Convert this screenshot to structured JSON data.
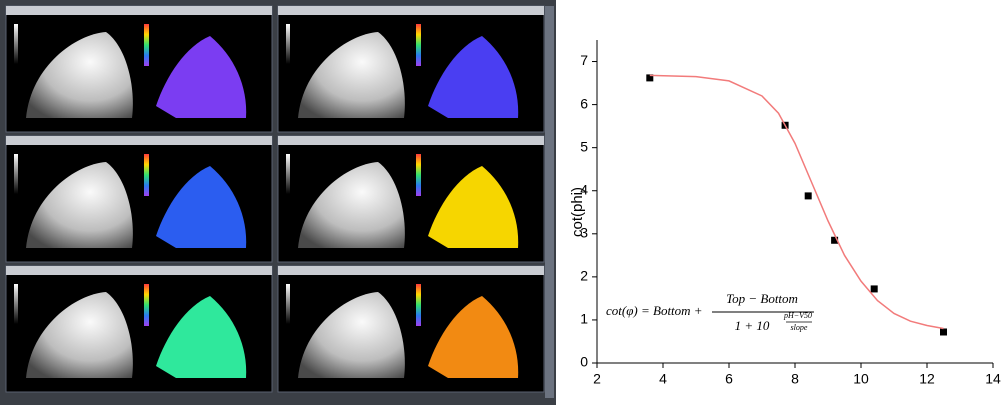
{
  "chart_data": {
    "type": "scatter",
    "y_label": "cot(phi)",
    "x": [
      3.6,
      7.7,
      8.4,
      9.2,
      10.4,
      12.5
    ],
    "series": [
      {
        "type": "scatter",
        "color": "#000000",
        "x": [
          3.6,
          7.7,
          8.4,
          9.2,
          10.4,
          12.5
        ],
        "values": [
          6.62,
          5.52,
          3.88,
          2.85,
          1.72,
          0.72
        ]
      },
      {
        "type": "line",
        "color": "#f27b7b",
        "x": [
          3.6,
          5,
          6,
          7,
          7.5,
          8,
          8.5,
          9,
          9.5,
          10,
          10.5,
          11,
          11.5,
          12,
          12.5
        ],
        "values": [
          6.68,
          6.65,
          6.55,
          6.2,
          5.8,
          5.1,
          4.2,
          3.3,
          2.5,
          1.9,
          1.45,
          1.15,
          0.97,
          0.87,
          0.8
        ]
      }
    ],
    "xlim": [
      2,
      14
    ],
    "xticks": [
      2,
      4,
      6,
      8,
      10,
      12,
      14
    ],
    "ylim": [
      0,
      7.5
    ],
    "yticks": [
      0,
      1,
      2,
      3,
      4,
      5,
      6,
      7
    ],
    "formula": {
      "lhs": "cot(φ) = Bottom +",
      "numerator": "Top − Bottom",
      "denominator": "1 + 10",
      "exp_numerator": "pH−V50",
      "exp_denominator": "slope"
    }
  }
}
